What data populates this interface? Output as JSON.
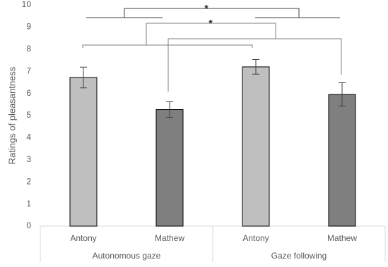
{
  "chart_data": {
    "type": "bar",
    "y_label": "Ratings of pleasantness",
    "categories": [
      "Antony",
      "Mathew",
      "Antony",
      "Mathew"
    ],
    "groups": [
      {
        "label": "Autonomous gaze",
        "span": [
          0,
          1
        ]
      },
      {
        "label": "Gaze following",
        "span": [
          2,
          3
        ]
      }
    ],
    "values": [
      6.72,
      5.27,
      7.2,
      5.95
    ],
    "errors": [
      0.47,
      0.35,
      0.33,
      0.53
    ],
    "colors": [
      "#bfbfbf",
      "#7f7f7f",
      "#bfbfbf",
      "#7f7f7f"
    ],
    "ylim": [
      0,
      10
    ],
    "yticks": [
      0,
      1,
      2,
      3,
      4,
      5,
      6,
      7,
      8,
      9,
      10
    ],
    "grid": false,
    "annotations": [
      "*",
      "*"
    ]
  }
}
